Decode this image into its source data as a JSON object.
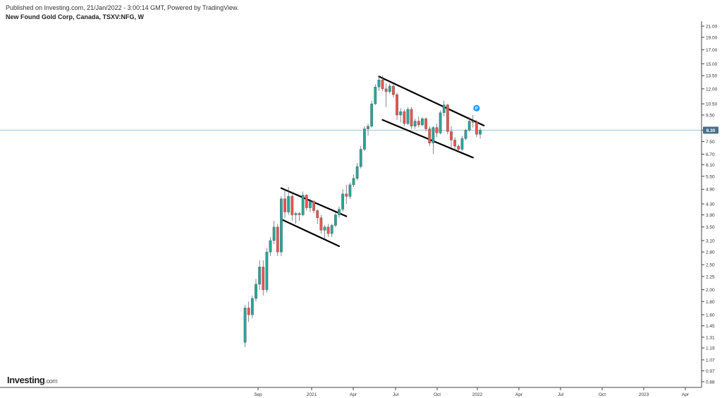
{
  "header": {
    "published": "Published on Investing.com, 21/Jan/2022 - 3:00:14 GMT, Powered by TradingView.",
    "title": "New Found Gold Corp, Canada, TSXV:NFG, W"
  },
  "logo": {
    "brand": "Investing",
    "domain": ".com"
  },
  "colors": {
    "up": "#26a69a",
    "down": "#ef5350",
    "price_line": "#7fb3d5",
    "price_label_bg": "#4a6f8a",
    "marker": "#2196f3"
  },
  "icons": {
    "publication_marker": "p-flag-icon"
  },
  "chart_data": {
    "type": "candlestick",
    "scale": "log",
    "ylim": [
      0.8,
      22
    ],
    "y_ticks": [
      21.0,
      19.0,
      17.0,
      15.0,
      13.5,
      12.0,
      10.5,
      9.5,
      8.3,
      7.5,
      6.7,
      6.1,
      5.5,
      4.9,
      4.3,
      3.9,
      3.5,
      3.1,
      2.8,
      2.5,
      2.25,
      2.0,
      1.8,
      1.6,
      1.45,
      1.31,
      1.19,
      1.07,
      0.97,
      0.88
    ],
    "x_ticks": [
      {
        "label": "Sep",
        "pos": 366
      },
      {
        "label": "2021",
        "pos": 442
      },
      {
        "label": "Apr",
        "pos": 501
      },
      {
        "label": "Jul",
        "pos": 561
      },
      {
        "label": "Oct",
        "pos": 620
      },
      {
        "label": "2022",
        "pos": 677
      },
      {
        "label": "Apr",
        "pos": 736
      },
      {
        "label": "Jul",
        "pos": 795
      },
      {
        "label": "Oct",
        "pos": 854
      },
      {
        "label": "2023",
        "pos": 913
      },
      {
        "label": "Apr",
        "pos": 972
      }
    ],
    "last_price": 8.3,
    "last_price_label": "8.30",
    "candles": [
      {
        "o": 1.25,
        "h": 1.75,
        "l": 1.2,
        "c": 1.7
      },
      {
        "o": 1.7,
        "h": 1.8,
        "l": 1.5,
        "c": 1.6
      },
      {
        "o": 1.6,
        "h": 1.9,
        "l": 1.55,
        "c": 1.85
      },
      {
        "o": 1.85,
        "h": 2.2,
        "l": 1.8,
        "c": 2.1
      },
      {
        "o": 2.1,
        "h": 2.6,
        "l": 2.0,
        "c": 2.45
      },
      {
        "o": 2.45,
        "h": 2.6,
        "l": 1.9,
        "c": 2.0
      },
      {
        "o": 2.0,
        "h": 2.9,
        "l": 1.95,
        "c": 2.8
      },
      {
        "o": 2.8,
        "h": 3.2,
        "l": 2.7,
        "c": 3.1
      },
      {
        "o": 3.1,
        "h": 3.7,
        "l": 3.0,
        "c": 3.5
      },
      {
        "o": 3.5,
        "h": 3.6,
        "l": 2.7,
        "c": 2.8
      },
      {
        "o": 2.8,
        "h": 4.6,
        "l": 2.7,
        "c": 4.5
      },
      {
        "o": 4.5,
        "h": 4.9,
        "l": 3.8,
        "c": 4.0
      },
      {
        "o": 4.0,
        "h": 5.0,
        "l": 3.9,
        "c": 4.6
      },
      {
        "o": 4.6,
        "h": 4.8,
        "l": 3.7,
        "c": 3.9
      },
      {
        "o": 3.9,
        "h": 4.0,
        "l": 3.6,
        "c": 3.95
      },
      {
        "o": 3.95,
        "h": 4.0,
        "l": 3.7,
        "c": 3.9
      },
      {
        "o": 3.9,
        "h": 4.8,
        "l": 3.85,
        "c": 4.65
      },
      {
        "o": 4.65,
        "h": 4.7,
        "l": 4.05,
        "c": 4.15
      },
      {
        "o": 4.15,
        "h": 4.5,
        "l": 4.0,
        "c": 4.4
      },
      {
        "o": 4.4,
        "h": 4.45,
        "l": 3.95,
        "c": 4.05
      },
      {
        "o": 4.05,
        "h": 4.1,
        "l": 3.6,
        "c": 3.8
      },
      {
        "o": 3.8,
        "h": 3.9,
        "l": 3.3,
        "c": 3.4
      },
      {
        "o": 3.4,
        "h": 3.55,
        "l": 3.15,
        "c": 3.5
      },
      {
        "o": 3.5,
        "h": 3.6,
        "l": 3.2,
        "c": 3.3
      },
      {
        "o": 3.3,
        "h": 3.6,
        "l": 3.2,
        "c": 3.55
      },
      {
        "o": 3.55,
        "h": 4.0,
        "l": 3.5,
        "c": 3.9
      },
      {
        "o": 3.9,
        "h": 4.2,
        "l": 3.8,
        "c": 4.1
      },
      {
        "o": 4.1,
        "h": 4.9,
        "l": 4.0,
        "c": 4.7
      },
      {
        "o": 4.7,
        "h": 5.1,
        "l": 4.3,
        "c": 4.6
      },
      {
        "o": 4.6,
        "h": 5.2,
        "l": 4.5,
        "c": 5.1
      },
      {
        "o": 5.1,
        "h": 5.6,
        "l": 5.0,
        "c": 5.4
      },
      {
        "o": 5.4,
        "h": 6.2,
        "l": 5.3,
        "c": 6.0
      },
      {
        "o": 6.0,
        "h": 7.2,
        "l": 5.9,
        "c": 7.0
      },
      {
        "o": 7.0,
        "h": 8.6,
        "l": 6.9,
        "c": 8.4
      },
      {
        "o": 8.4,
        "h": 8.8,
        "l": 7.9,
        "c": 8.6
      },
      {
        "o": 8.6,
        "h": 10.8,
        "l": 8.5,
        "c": 10.5
      },
      {
        "o": 10.5,
        "h": 12.5,
        "l": 10.4,
        "c": 12.2
      },
      {
        "o": 12.2,
        "h": 13.5,
        "l": 11.8,
        "c": 13.0
      },
      {
        "o": 13.0,
        "h": 13.5,
        "l": 11.8,
        "c": 12.0
      },
      {
        "o": 12.0,
        "h": 12.6,
        "l": 10.2,
        "c": 11.7
      },
      {
        "o": 11.7,
        "h": 12.6,
        "l": 11.5,
        "c": 12.3
      },
      {
        "o": 12.3,
        "h": 12.5,
        "l": 11.1,
        "c": 11.4
      },
      {
        "o": 11.4,
        "h": 11.6,
        "l": 9.1,
        "c": 9.5
      },
      {
        "o": 9.5,
        "h": 10.1,
        "l": 8.9,
        "c": 9.8
      },
      {
        "o": 9.8,
        "h": 10.0,
        "l": 8.6,
        "c": 8.8
      },
      {
        "o": 8.8,
        "h": 10.2,
        "l": 8.7,
        "c": 10.0
      },
      {
        "o": 10.0,
        "h": 10.2,
        "l": 8.4,
        "c": 8.6
      },
      {
        "o": 8.6,
        "h": 9.2,
        "l": 8.4,
        "c": 9.0
      },
      {
        "o": 9.0,
        "h": 9.4,
        "l": 8.5,
        "c": 8.7
      },
      {
        "o": 8.7,
        "h": 9.3,
        "l": 8.6,
        "c": 9.2
      },
      {
        "o": 9.2,
        "h": 9.3,
        "l": 8.2,
        "c": 8.4
      },
      {
        "o": 8.4,
        "h": 8.6,
        "l": 7.2,
        "c": 7.4
      },
      {
        "o": 7.4,
        "h": 8.6,
        "l": 6.7,
        "c": 8.5
      },
      {
        "o": 8.5,
        "h": 8.8,
        "l": 7.8,
        "c": 8.1
      },
      {
        "o": 8.1,
        "h": 9.9,
        "l": 8.0,
        "c": 9.7
      },
      {
        "o": 9.7,
        "h": 10.8,
        "l": 9.4,
        "c": 10.4
      },
      {
        "o": 10.4,
        "h": 10.5,
        "l": 8.0,
        "c": 8.2
      },
      {
        "o": 8.2,
        "h": 8.6,
        "l": 7.1,
        "c": 7.6
      },
      {
        "o": 7.6,
        "h": 7.8,
        "l": 6.9,
        "c": 7.2
      },
      {
        "o": 7.2,
        "h": 7.3,
        "l": 6.8,
        "c": 7.0
      },
      {
        "o": 7.0,
        "h": 7.9,
        "l": 6.9,
        "c": 7.7
      },
      {
        "o": 7.7,
        "h": 8.4,
        "l": 7.6,
        "c": 8.3
      },
      {
        "o": 8.3,
        "h": 9.3,
        "l": 8.2,
        "c": 9.0
      },
      {
        "o": 9.0,
        "h": 9.5,
        "l": 8.5,
        "c": 8.9
      },
      {
        "o": 8.9,
        "h": 9.1,
        "l": 7.8,
        "c": 8.0
      },
      {
        "o": 8.0,
        "h": 8.5,
        "l": 7.7,
        "c": 8.3
      }
    ],
    "trendlines": [
      {
        "from": [
          10,
          4.95
        ],
        "to": [
          28,
          3.85
        ]
      },
      {
        "from": [
          10,
          3.75
        ],
        "to": [
          26,
          2.95
        ]
      },
      {
        "from": [
          37,
          13.4
        ],
        "to": [
          66,
          8.65
        ]
      },
      {
        "from": [
          38,
          9.1
        ],
        "to": [
          63,
          6.5
        ]
      }
    ],
    "marker": {
      "candle": 64,
      "price": 10.1,
      "label": "P"
    }
  }
}
